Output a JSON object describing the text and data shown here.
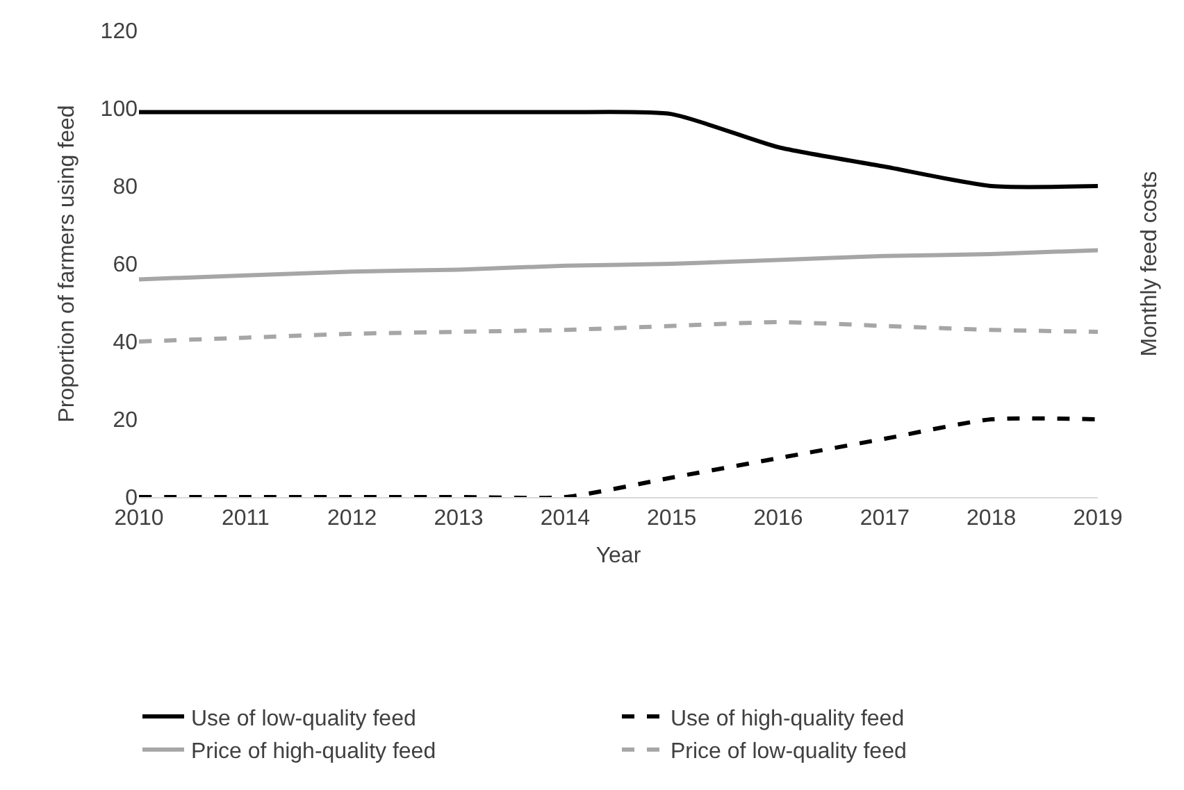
{
  "chart_data": {
    "type": "line",
    "xlabel": "Year",
    "ylabel": "Proportion of farmers using feed",
    "y2label": "Monthly feed costs",
    "categories": [
      "2010",
      "2011",
      "2012",
      "2013",
      "2014",
      "2015",
      "2016",
      "2017",
      "2018",
      "2019"
    ],
    "series": [
      {
        "name": "Use of low-quality feed",
        "color": "#000000",
        "line_style": "solid",
        "values": [
          99,
          99,
          99,
          99,
          99,
          98.5,
          90,
          85,
          80,
          80
        ]
      },
      {
        "name": "Use of high-quality feed",
        "color": "#000000",
        "line_style": "dashed",
        "values": [
          0,
          0,
          0,
          0,
          0,
          5,
          10,
          15,
          20,
          20
        ]
      },
      {
        "name": "Price of high-quality feed",
        "color": "#a6a6a6",
        "line_style": "solid",
        "values": [
          56,
          57,
          58,
          58.5,
          59.5,
          60,
          61,
          62,
          62.5,
          63.5
        ]
      },
      {
        "name": "Price of low-quality feed",
        "color": "#a6a6a6",
        "line_style": "dashed",
        "values": [
          40,
          41,
          42,
          42.5,
          43,
          44,
          45,
          44,
          43,
          42.5
        ]
      }
    ],
    "ylim": [
      0,
      120
    ],
    "yticks": [
      0,
      20,
      40,
      60,
      80,
      100,
      120
    ],
    "grid": false,
    "legend": "bottom",
    "marker": "none"
  }
}
